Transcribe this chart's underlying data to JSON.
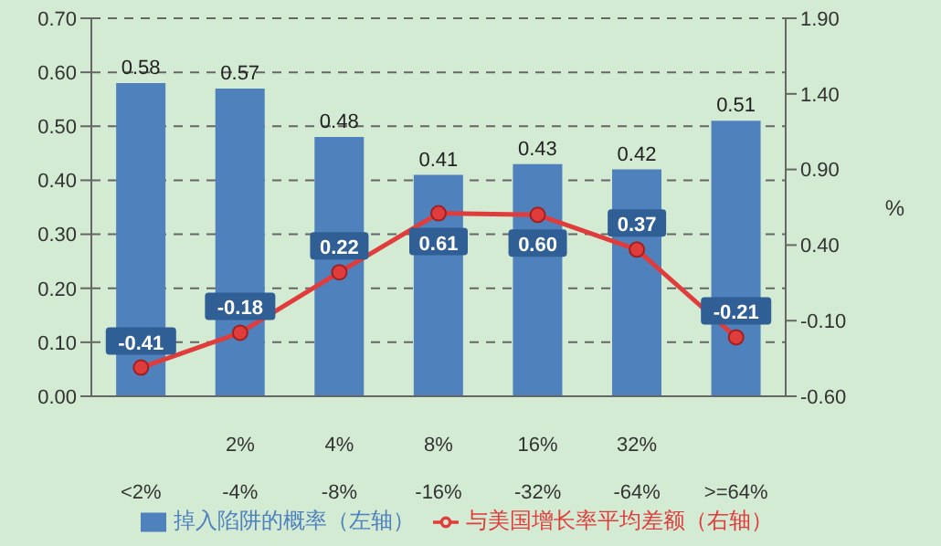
{
  "chart_data": {
    "type": "bar",
    "categories": [
      "<2%",
      "2%-4%",
      "4%-8%",
      "8%-16%",
      "16%-32%",
      "32%-64%",
      ">=64%"
    ],
    "series": [
      {
        "name": "掉入陷阱的概率（左轴）",
        "color": "#4f81bd",
        "values": [
          0.58,
          0.57,
          0.48,
          0.41,
          0.43,
          0.42,
          0.51
        ]
      },
      {
        "name": "与美国增长率平均差额（右轴）",
        "type": "line",
        "axis": "y2",
        "color": "#e03c3c",
        "values": [
          -0.41,
          -0.18,
          0.22,
          0.61,
          0.6,
          0.37,
          -0.21
        ],
        "value_labels": [
          "-0.41",
          "-0.18",
          "0.22",
          "0.61",
          "0.60",
          "0.37",
          "-0.21"
        ]
      }
    ],
    "ylim": [
      0,
      0.7
    ],
    "yticks": [
      {
        "value": 0,
        "label": "0.00"
      },
      {
        "value": 0.1,
        "label": "0.10"
      },
      {
        "value": 0.2,
        "label": "0.20"
      },
      {
        "value": 0.3,
        "label": "0.30"
      },
      {
        "value": 0.4,
        "label": "0.40"
      },
      {
        "value": 0.5,
        "label": "0.50"
      },
      {
        "value": 0.6,
        "label": "0.60"
      },
      {
        "value": 0.7,
        "label": "0.70"
      }
    ],
    "y2lim": [
      -0.6,
      1.9
    ],
    "y2ticks": [
      {
        "value": -0.6,
        "label": "-0.60"
      },
      {
        "value": -0.1,
        "label": "-0.10"
      },
      {
        "value": 0.4,
        "label": "0.40"
      },
      {
        "value": 0.9,
        "label": "0.90"
      },
      {
        "value": 1.4,
        "label": "1.40"
      },
      {
        "value": 1.9,
        "label": "1.90"
      }
    ],
    "y2label": "%",
    "grid": "y",
    "legend": "bottom",
    "marker": "circle",
    "line_style": "solid",
    "data_labels": true
  }
}
